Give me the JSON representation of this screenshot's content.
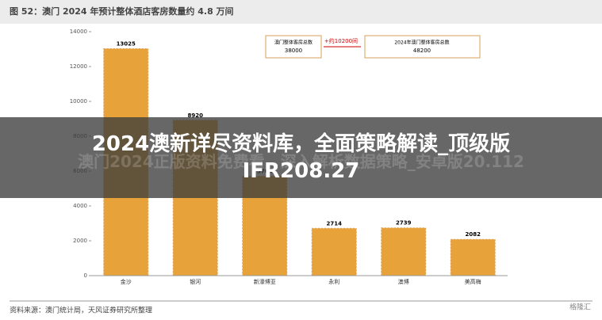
{
  "figure_title": "图 52：澳门 2024 年预计整体酒店客房数量约 4.8 万间",
  "overlay_title": "2024澳新详尽资料库，全面策略解读_顶级版IFR208.27",
  "watermark": "澳门2024正版资料免费看，深入解析数据策略_安卓版20.112",
  "source": "资料来源：澳门统计局，天风证券研究所整理",
  "logo": "格隆汇",
  "boxes": [
    "澳门整体客房总数",
    "38000",
    "+约10200间",
    "2024年澳门整体客房总数",
    "48200"
  ],
  "chart_data": {
    "type": "bar",
    "categories": [
      "金沙",
      "银河",
      "新濠博亚",
      "永利",
      "澳博",
      "美高梅"
    ],
    "values": [
      13025,
      8920,
      5700,
      2714,
      2739,
      2082
    ],
    "color": "#e8a23a",
    "ylim": [
      0,
      14000
    ],
    "yticks": [
      0,
      2000,
      4000,
      6000,
      8000,
      10000,
      12000,
      14000
    ],
    "grid": false
  }
}
